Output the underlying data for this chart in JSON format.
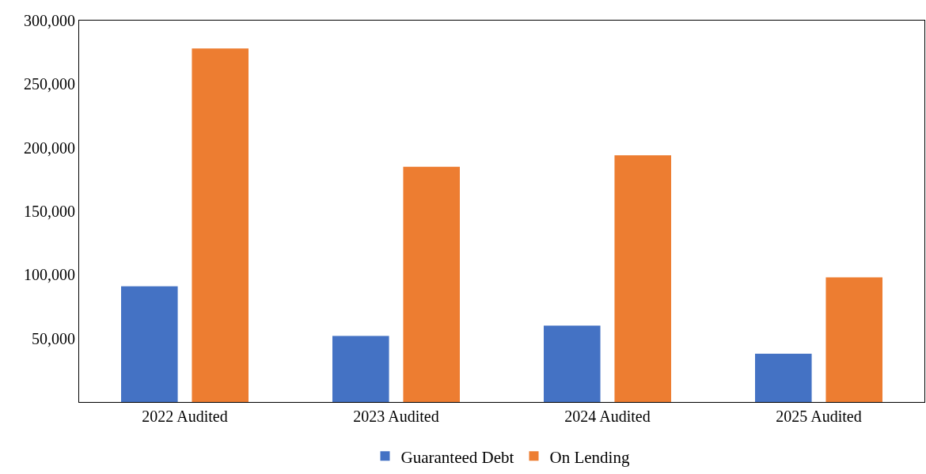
{
  "chart_data": {
    "type": "bar",
    "categories": [
      "2022 Audited",
      "2023 Audited",
      "2024 Audited",
      "2025 Audited"
    ],
    "series": [
      {
        "name": "Guaranteed Debt",
        "color": "#4472c4",
        "values": [
          91000,
          52000,
          60000,
          38000
        ]
      },
      {
        "name": "On Lending",
        "color": "#ed7d31",
        "values": [
          278000,
          185000,
          194000,
          98000
        ]
      }
    ],
    "ylim": [
      0,
      300000
    ],
    "yticks": [
      {
        "value": 0,
        "label": null
      },
      {
        "value": 50000,
        "label": "50,000"
      },
      {
        "value": 100000,
        "label": "100,000"
      },
      {
        "value": 150000,
        "label": "150,000"
      },
      {
        "value": 200000,
        "label": "200,000"
      },
      {
        "value": 250000,
        "label": "250,000"
      },
      {
        "value": 300000,
        "label": "300,000"
      }
    ],
    "grid": false,
    "legend": "bottom"
  }
}
